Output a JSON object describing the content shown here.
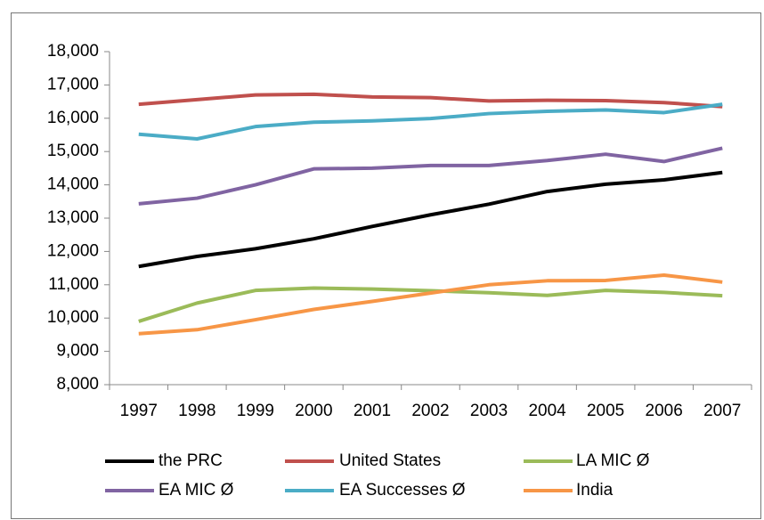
{
  "chart_data": {
    "type": "line",
    "categories": [
      "1997",
      "1998",
      "1999",
      "2000",
      "2001",
      "2002",
      "2003",
      "2004",
      "2005",
      "2006",
      "2007"
    ],
    "series": [
      {
        "name": "the PRC",
        "color": "#000000",
        "values": [
          11550,
          11850,
          12080,
          12380,
          12750,
          13100,
          13420,
          13800,
          14020,
          14150,
          14370
        ]
      },
      {
        "name": "United States",
        "color": "#c0504d",
        "values": [
          16420,
          16560,
          16700,
          16720,
          16640,
          16620,
          16520,
          16540,
          16530,
          16470,
          16350
        ]
      },
      {
        "name": "LA MIC Ø",
        "color": "#9bbb59",
        "values": [
          9900,
          10450,
          10830,
          10900,
          10870,
          10820,
          10760,
          10680,
          10830,
          10770,
          10670
        ]
      },
      {
        "name": "EA MIC Ø",
        "color": "#8064a2",
        "values": [
          13430,
          13600,
          14000,
          14480,
          14500,
          14580,
          14580,
          14730,
          14920,
          14700,
          15100
        ]
      },
      {
        "name": "EA Successes Ø",
        "color": "#4bacc6",
        "values": [
          15520,
          15380,
          15750,
          15880,
          15920,
          15990,
          16140,
          16210,
          16250,
          16170,
          16420
        ]
      },
      {
        "name": "India",
        "color": "#f79646",
        "values": [
          9530,
          9650,
          9950,
          10260,
          10500,
          10750,
          11000,
          11120,
          11130,
          11290,
          11080
        ]
      }
    ],
    "ylim": [
      8000,
      18000
    ],
    "yticks": [
      {
        "value": 8000,
        "label": "8,000"
      },
      {
        "value": 9000,
        "label": "9,000"
      },
      {
        "value": 10000,
        "label": "10,000"
      },
      {
        "value": 11000,
        "label": "11,000"
      },
      {
        "value": 12000,
        "label": "12,000"
      },
      {
        "value": 13000,
        "label": "13,000"
      },
      {
        "value": 14000,
        "label": "14,000"
      },
      {
        "value": 15000,
        "label": "15,000"
      },
      {
        "value": 16000,
        "label": "16,000"
      },
      {
        "value": 17000,
        "label": "17,000"
      },
      {
        "value": 18000,
        "label": "18,000"
      }
    ],
    "grid": false
  }
}
